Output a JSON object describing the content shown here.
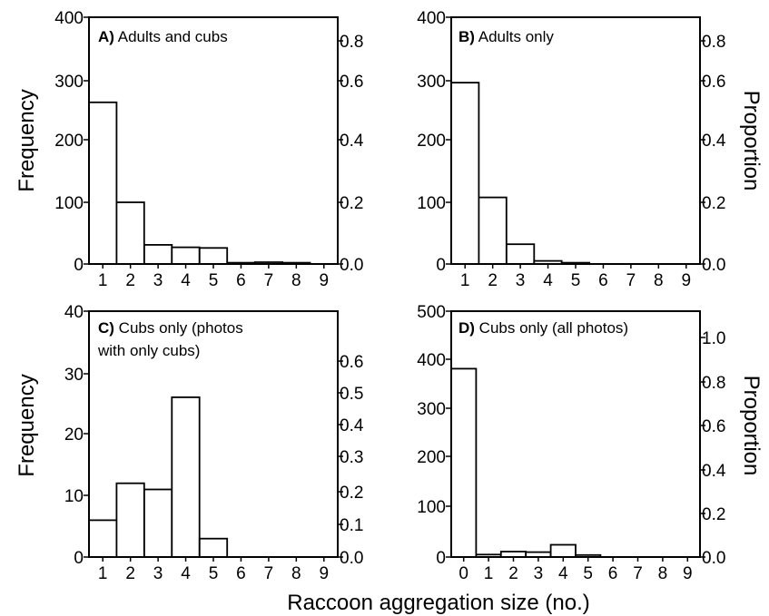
{
  "figure": {
    "xlabel": "Raccoon aggregation size (no.)"
  },
  "chart_data": [
    {
      "type": "bar",
      "panel_letter": "A)",
      "panel_title": "Adults and cubs",
      "categories": [
        "1",
        "2",
        "3",
        "4",
        "5",
        "6",
        "7",
        "8",
        "9"
      ],
      "values": [
        262,
        100,
        31,
        27,
        26,
        2,
        3,
        2,
        0
      ],
      "left_ticks": [
        "0",
        "100",
        "200",
        "300",
        "400"
      ],
      "right_ticks": [
        "0.0",
        "0.2",
        "0.4",
        "0.6",
        "0.8"
      ],
      "ylabel": "Frequency",
      "right_ylabel": "",
      "ylim": [
        0,
        400
      ],
      "grid": false
    },
    {
      "type": "bar",
      "panel_letter": "B)",
      "panel_title": "Adults only",
      "categories": [
        "1",
        "2",
        "3",
        "4",
        "5",
        "6",
        "7",
        "8",
        "9"
      ],
      "values": [
        294,
        108,
        32,
        5,
        2,
        0,
        0,
        0,
        0
      ],
      "left_ticks": [
        "0",
        "100",
        "200",
        "300",
        "400"
      ],
      "right_ticks": [
        "0.0",
        "0.2",
        "0.4",
        "0.6",
        "0.8"
      ],
      "ylabel": "",
      "right_ylabel": "Proportion",
      "ylim": [
        0,
        400
      ],
      "grid": false
    },
    {
      "type": "bar",
      "panel_letter": "C)",
      "panel_title_lines": [
        "Cubs only (photos",
        "with only cubs)"
      ],
      "categories": [
        "1",
        "2",
        "3",
        "4",
        "5",
        "6",
        "7",
        "8",
        "9"
      ],
      "values": [
        6,
        12,
        11,
        26,
        3,
        0,
        0,
        0,
        0
      ],
      "left_ticks": [
        "0",
        "10",
        "20",
        "30",
        "40"
      ],
      "right_ticks": [
        "0.0",
        "0.1",
        "0.2",
        "0.3",
        "0.4",
        "0.5",
        "0.6"
      ],
      "ylabel": "Frequency",
      "right_ylabel": "",
      "ylim": [
        0,
        40
      ],
      "grid": false
    },
    {
      "type": "bar",
      "panel_letter": "D)",
      "panel_title": "Cubs only (all photos)",
      "categories": [
        "0",
        "1",
        "2",
        "3",
        "4",
        "5",
        "6",
        "7",
        "8",
        "9"
      ],
      "values": [
        383,
        5,
        11,
        10,
        25,
        4,
        0,
        0,
        0,
        0
      ],
      "left_ticks": [
        "0",
        "100",
        "200",
        "300",
        "400",
        "500"
      ],
      "right_ticks": [
        "0.0",
        "0.2",
        "0.4",
        "0.6",
        "0.8",
        "1.0"
      ],
      "ylabel": "",
      "right_ylabel": "Proportion",
      "ylim": [
        0,
        500
      ],
      "grid": false
    }
  ]
}
